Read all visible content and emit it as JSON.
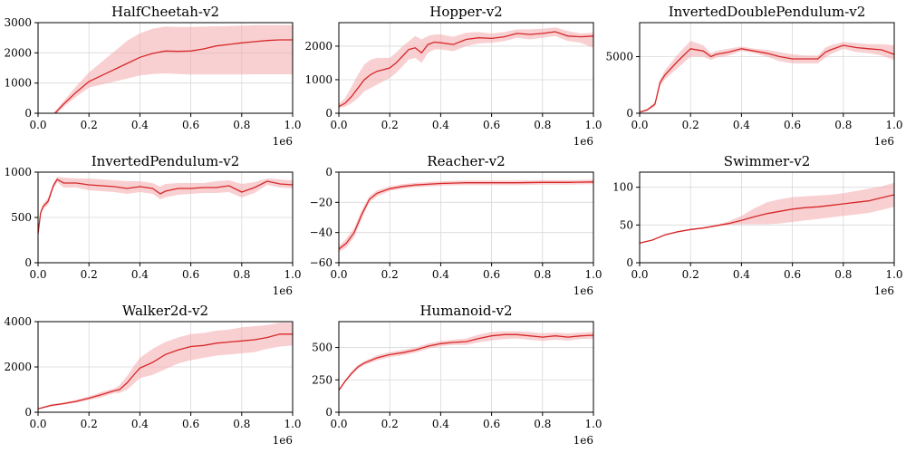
{
  "colors": {
    "line": "#d62728",
    "band": "#f4a9ad"
  },
  "chart_data": [
    {
      "type": "line",
      "title": "HalfCheetah-v2",
      "xlim": [
        0,
        1000000
      ],
      "ylim": [
        0,
        3000
      ],
      "xticks": [
        0,
        200000,
        400000,
        600000,
        800000,
        1000000
      ],
      "xtick_labels": [
        "0.0",
        "0.2",
        "0.4",
        "0.6",
        "0.8",
        "1.0"
      ],
      "yticks": [
        0,
        1000,
        2000,
        3000
      ],
      "ytick_labels": [
        "0",
        "1000",
        "2000",
        "3000"
      ],
      "x_offset_label": "1e6",
      "grid": true,
      "series": [
        {
          "x": [
            0,
            50000,
            100000,
            150000,
            200000,
            250000,
            300000,
            350000,
            400000,
            450000,
            500000,
            550000,
            600000,
            650000,
            700000,
            750000,
            800000,
            850000,
            900000,
            950000,
            1000000
          ],
          "mean": [
            -300,
            -150,
            300,
            700,
            1050,
            1250,
            1450,
            1650,
            1850,
            1980,
            2060,
            2050,
            2060,
            2130,
            2230,
            2280,
            2330,
            2370,
            2410,
            2430,
            2430
          ],
          "upper": [
            -250,
            -100,
            400,
            900,
            1350,
            1700,
            2050,
            2400,
            2650,
            2800,
            2870,
            2860,
            2860,
            2870,
            2880,
            2890,
            2900,
            2920,
            2920,
            2920,
            2920
          ],
          "lower": [
            -350,
            -200,
            200,
            550,
            850,
            950,
            1050,
            1150,
            1250,
            1300,
            1320,
            1300,
            1280,
            1280,
            1280,
            1280,
            1280,
            1290,
            1290,
            1290,
            1290
          ]
        }
      ]
    },
    {
      "type": "line",
      "title": "Hopper-v2",
      "xlim": [
        0,
        1000000
      ],
      "ylim": [
        0,
        2700
      ],
      "xticks": [
        0,
        200000,
        400000,
        600000,
        800000,
        1000000
      ],
      "xtick_labels": [
        "0.0",
        "0.2",
        "0.4",
        "0.6",
        "0.8",
        "1.0"
      ],
      "yticks": [
        0,
        1000,
        2000
      ],
      "ytick_labels": [
        "0",
        "1000",
        "2000"
      ],
      "x_offset_label": "1e6",
      "grid": true,
      "series": [
        {
          "x": [
            0,
            25000,
            50000,
            75000,
            100000,
            125000,
            150000,
            175000,
            200000,
            225000,
            250000,
            275000,
            300000,
            325000,
            350000,
            375000,
            400000,
            450000,
            500000,
            550000,
            600000,
            650000,
            700000,
            750000,
            800000,
            850000,
            900000,
            950000,
            1000000
          ],
          "mean": [
            200,
            300,
            500,
            750,
            1000,
            1150,
            1250,
            1300,
            1350,
            1500,
            1700,
            1900,
            1950,
            1800,
            2050,
            2120,
            2100,
            2050,
            2200,
            2250,
            2230,
            2280,
            2380,
            2350,
            2380,
            2430,
            2300,
            2280,
            2300
          ],
          "upper": [
            280,
            450,
            800,
            1150,
            1450,
            1600,
            1650,
            1650,
            1650,
            1800,
            2000,
            2150,
            2300,
            2200,
            2300,
            2350,
            2350,
            2280,
            2400,
            2420,
            2380,
            2420,
            2500,
            2500,
            2520,
            2560,
            2450,
            2380,
            2400
          ],
          "lower": [
            150,
            200,
            300,
            450,
            650,
            750,
            850,
            950,
            1050,
            1200,
            1400,
            1600,
            1650,
            1500,
            1800,
            1900,
            1900,
            1850,
            2000,
            2080,
            2100,
            2150,
            2250,
            2200,
            2250,
            2300,
            2150,
            2100,
            1950
          ]
        }
      ]
    },
    {
      "type": "line",
      "title": "InvertedDoublePendulum-v2",
      "xlim": [
        0,
        1000000
      ],
      "ylim": [
        0,
        8000
      ],
      "xticks": [
        0,
        200000,
        400000,
        600000,
        800000,
        1000000
      ],
      "xtick_labels": [
        "0.0",
        "0.2",
        "0.4",
        "0.6",
        "0.8",
        "1.0"
      ],
      "yticks": [
        0,
        5000
      ],
      "ytick_labels": [
        "0",
        "5000"
      ],
      "x_offset_label": "1e6",
      "grid": true,
      "series": [
        {
          "x": [
            0,
            30000,
            60000,
            80000,
            100000,
            150000,
            200000,
            250000,
            280000,
            300000,
            350000,
            400000,
            450000,
            500000,
            550000,
            600000,
            650000,
            700000,
            730000,
            750000,
            800000,
            850000,
            900000,
            950000,
            1000000
          ],
          "mean": [
            100,
            300,
            800,
            2700,
            3400,
            4600,
            5700,
            5500,
            5000,
            5200,
            5400,
            5700,
            5500,
            5300,
            5000,
            4800,
            4800,
            4800,
            5400,
            5600,
            6000,
            5800,
            5700,
            5600,
            5200
          ],
          "upper": [
            150,
            400,
            1000,
            3000,
            3800,
            5200,
            6400,
            6000,
            5300,
            5500,
            5700,
            5900,
            5700,
            5600,
            5400,
            5200,
            5100,
            5100,
            5800,
            6000,
            6300,
            6200,
            6100,
            6100,
            6000
          ],
          "lower": [
            50,
            200,
            600,
            2400,
            3000,
            4000,
            5000,
            5000,
            4700,
            4900,
            5100,
            5500,
            5300,
            5000,
            4600,
            4400,
            4400,
            4400,
            4900,
            5200,
            5700,
            5400,
            5300,
            5100,
            4700
          ]
        }
      ]
    },
    {
      "type": "line",
      "title": "InvertedPendulum-v2",
      "xlim": [
        0,
        1000000
      ],
      "ylim": [
        0,
        1000
      ],
      "xticks": [
        0,
        200000,
        400000,
        600000,
        800000,
        1000000
      ],
      "xtick_labels": [
        "0.0",
        "0.2",
        "0.4",
        "0.6",
        "0.8",
        "1.0"
      ],
      "yticks": [
        0,
        500,
        1000
      ],
      "ytick_labels": [
        "0",
        "500",
        "1000"
      ],
      "x_offset_label": "1e6",
      "grid": true,
      "series": [
        {
          "x": [
            0,
            10000,
            20000,
            40000,
            60000,
            75000,
            100000,
            150000,
            200000,
            250000,
            300000,
            350000,
            400000,
            450000,
            480000,
            500000,
            550000,
            600000,
            650000,
            700000,
            750000,
            800000,
            850000,
            900000,
            950000,
            1000000
          ],
          "mean": [
            320,
            550,
            620,
            680,
            850,
            920,
            880,
            880,
            860,
            850,
            840,
            820,
            840,
            820,
            760,
            790,
            820,
            820,
            830,
            830,
            850,
            780,
            830,
            900,
            870,
            860
          ],
          "upper": [
            350,
            580,
            650,
            720,
            880,
            950,
            940,
            930,
            930,
            920,
            910,
            900,
            900,
            880,
            840,
            870,
            880,
            880,
            880,
            900,
            910,
            870,
            890,
            930,
            920,
            910
          ],
          "lower": [
            290,
            520,
            590,
            640,
            820,
            890,
            830,
            830,
            800,
            790,
            780,
            760,
            780,
            760,
            700,
            720,
            750,
            760,
            770,
            770,
            780,
            720,
            770,
            860,
            830,
            820
          ]
        }
      ]
    },
    {
      "type": "line",
      "title": "Reacher-v2",
      "xlim": [
        0,
        1000000
      ],
      "ylim": [
        -60,
        0
      ],
      "xticks": [
        0,
        200000,
        400000,
        600000,
        800000,
        1000000
      ],
      "xtick_labels": [
        "0.0",
        "0.2",
        "0.4",
        "0.6",
        "0.8",
        "1.0"
      ],
      "yticks": [
        -60,
        -40,
        -20,
        0
      ],
      "ytick_labels": [
        "−60",
        "−40",
        "−20",
        "0"
      ],
      "x_offset_label": "1e6",
      "grid": true,
      "series": [
        {
          "x": [
            0,
            30000,
            60000,
            90000,
            120000,
            150000,
            200000,
            250000,
            300000,
            400000,
            500000,
            600000,
            700000,
            800000,
            900000,
            1000000
          ],
          "mean": [
            -51,
            -47,
            -40,
            -28,
            -18,
            -14,
            -11,
            -9.5,
            -8.5,
            -7.5,
            -7,
            -7,
            -7,
            -6.8,
            -6.8,
            -6.5
          ],
          "upper": [
            -49,
            -44,
            -37,
            -25,
            -16,
            -12,
            -9.5,
            -8,
            -7,
            -6,
            -5.5,
            -5.5,
            -5.5,
            -5.3,
            -5.2,
            -5
          ],
          "lower": [
            -53,
            -50,
            -43,
            -31,
            -20,
            -16,
            -12.5,
            -11,
            -10,
            -9,
            -8.5,
            -8.5,
            -8.5,
            -8.3,
            -8.3,
            -8
          ]
        }
      ]
    },
    {
      "type": "line",
      "title": "Swimmer-v2",
      "xlim": [
        0,
        1000000
      ],
      "ylim": [
        0,
        120
      ],
      "xticks": [
        0,
        200000,
        400000,
        600000,
        800000,
        1000000
      ],
      "xtick_labels": [
        "0.0",
        "0.2",
        "0.4",
        "0.6",
        "0.8",
        "1.0"
      ],
      "yticks": [
        0,
        50,
        100
      ],
      "ytick_labels": [
        "0",
        "50",
        "100"
      ],
      "x_offset_label": "1e6",
      "grid": true,
      "series": [
        {
          "x": [
            0,
            50000,
            100000,
            150000,
            200000,
            250000,
            300000,
            350000,
            400000,
            450000,
            500000,
            550000,
            600000,
            650000,
            700000,
            750000,
            800000,
            850000,
            900000,
            950000,
            1000000
          ],
          "mean": [
            26,
            30,
            37,
            41,
            44,
            46,
            49,
            52,
            56,
            61,
            65,
            68,
            71,
            73,
            74,
            76,
            78,
            80,
            82,
            86,
            90
          ],
          "upper": [
            27,
            31,
            38,
            42,
            45,
            47,
            50,
            55,
            62,
            72,
            80,
            84,
            87,
            88,
            89,
            90,
            92,
            95,
            98,
            101,
            106
          ],
          "lower": [
            25,
            29,
            36,
            40,
            43,
            45,
            48,
            50,
            51,
            51,
            51,
            52,
            54,
            56,
            58,
            60,
            62,
            64,
            66,
            70,
            74
          ]
        }
      ]
    },
    {
      "type": "line",
      "title": "Walker2d-v2",
      "xlim": [
        0,
        1000000
      ],
      "ylim": [
        0,
        4000
      ],
      "xticks": [
        0,
        200000,
        400000,
        600000,
        800000,
        1000000
      ],
      "xtick_labels": [
        "0.0",
        "0.2",
        "0.4",
        "0.6",
        "0.8",
        "1.0"
      ],
      "yticks": [
        0,
        2000,
        4000
      ],
      "ytick_labels": [
        "0",
        "2000",
        "4000"
      ],
      "x_offset_label": "1e6",
      "grid": true,
      "series": [
        {
          "x": [
            0,
            50000,
            100000,
            150000,
            200000,
            250000,
            300000,
            320000,
            350000,
            380000,
            400000,
            450000,
            500000,
            550000,
            600000,
            650000,
            700000,
            750000,
            800000,
            850000,
            900000,
            950000,
            1000000
          ],
          "mean": [
            150,
            300,
            380,
            480,
            620,
            780,
            950,
            1000,
            1300,
            1700,
            1950,
            2200,
            2550,
            2750,
            2900,
            2950,
            3050,
            3100,
            3150,
            3200,
            3300,
            3450,
            3450
          ],
          "upper": [
            180,
            350,
            430,
            550,
            700,
            900,
            1050,
            1200,
            1600,
            2100,
            2400,
            2800,
            3100,
            3300,
            3450,
            3500,
            3600,
            3650,
            3750,
            3800,
            3850,
            3950,
            3950
          ],
          "lower": [
            120,
            250,
            330,
            420,
            540,
            660,
            850,
            850,
            1000,
            1300,
            1500,
            1650,
            1900,
            2150,
            2300,
            2400,
            2500,
            2550,
            2600,
            2650,
            2800,
            2900,
            2950
          ]
        }
      ]
    },
    {
      "type": "line",
      "title": "Humanoid-v2",
      "xlim": [
        0,
        1000000
      ],
      "ylim": [
        0,
        700
      ],
      "xticks": [
        0,
        200000,
        400000,
        600000,
        800000,
        1000000
      ],
      "xtick_labels": [
        "0.0",
        "0.2",
        "0.4",
        "0.6",
        "0.8",
        "1.0"
      ],
      "yticks": [
        0,
        250,
        500
      ],
      "ytick_labels": [
        "0",
        "250",
        "500"
      ],
      "x_offset_label": "1e6",
      "grid": true,
      "series": [
        {
          "x": [
            0,
            25000,
            50000,
            75000,
            100000,
            150000,
            200000,
            250000,
            300000,
            350000,
            400000,
            450000,
            500000,
            550000,
            600000,
            650000,
            700000,
            750000,
            800000,
            850000,
            900000,
            950000,
            1000000
          ],
          "mean": [
            170,
            240,
            300,
            350,
            380,
            420,
            445,
            460,
            480,
            510,
            530,
            540,
            545,
            570,
            590,
            600,
            600,
            590,
            580,
            590,
            580,
            590,
            595
          ],
          "upper": [
            180,
            250,
            315,
            365,
            395,
            440,
            465,
            480,
            500,
            530,
            550,
            560,
            570,
            600,
            620,
            625,
            625,
            620,
            610,
            615,
            610,
            615,
            620
          ],
          "lower": [
            160,
            230,
            285,
            335,
            365,
            400,
            425,
            440,
            460,
            490,
            510,
            520,
            520,
            540,
            555,
            565,
            570,
            560,
            550,
            560,
            555,
            565,
            570
          ]
        }
      ]
    }
  ]
}
